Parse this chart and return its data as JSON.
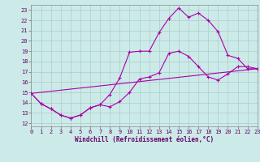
{
  "background_color": "#cceae8",
  "grid_color": "#aacccc",
  "line_color": "#aa00aa",
  "marker": "+",
  "markersize": 3,
  "linewidth": 0.8,
  "xlabel": "Windchill (Refroidissement éolien,°C)",
  "ylabel_ticks": [
    12,
    13,
    14,
    15,
    16,
    17,
    18,
    19,
    20,
    21,
    22,
    23
  ],
  "xticks": [
    0,
    1,
    2,
    3,
    4,
    5,
    6,
    7,
    8,
    9,
    10,
    11,
    12,
    13,
    14,
    15,
    16,
    17,
    18,
    19,
    20,
    21,
    22,
    23
  ],
  "xlim": [
    0,
    23
  ],
  "ylim": [
    11.7,
    23.5
  ],
  "line1_x": [
    0,
    1,
    2,
    3,
    4,
    5,
    6,
    7,
    8,
    9,
    10,
    11,
    12,
    13,
    14,
    15,
    16,
    17,
    18,
    19,
    20,
    21,
    22,
    23
  ],
  "line1_y": [
    14.9,
    13.9,
    13.4,
    12.8,
    12.5,
    12.8,
    13.5,
    13.8,
    13.6,
    14.1,
    15.0,
    16.3,
    16.5,
    16.9,
    18.8,
    19.0,
    18.5,
    17.5,
    16.5,
    16.2,
    16.8,
    17.5,
    17.5,
    17.3
  ],
  "line2_x": [
    0,
    1,
    2,
    3,
    4,
    5,
    6,
    7,
    8,
    9,
    10,
    11,
    12,
    13,
    14,
    15,
    16,
    17,
    18,
    19,
    20,
    21,
    22,
    23
  ],
  "line2_y": [
    14.9,
    13.9,
    13.4,
    12.8,
    12.5,
    12.8,
    13.5,
    13.8,
    14.8,
    16.4,
    18.9,
    19.0,
    19.0,
    20.8,
    22.2,
    23.2,
    22.3,
    22.7,
    22.0,
    20.9,
    18.6,
    18.3,
    17.3,
    17.3
  ],
  "line3_x": [
    0,
    23
  ],
  "line3_y": [
    14.9,
    17.3
  ],
  "tick_fontsize": 5,
  "xlabel_fontsize": 5.5
}
